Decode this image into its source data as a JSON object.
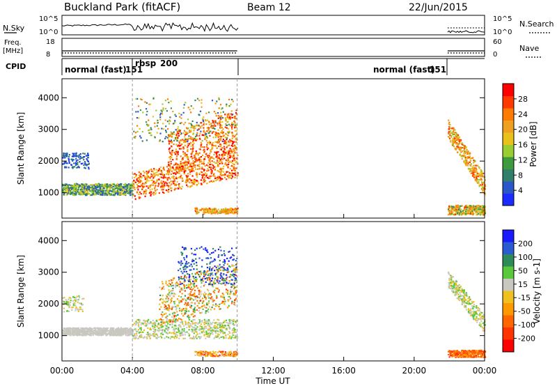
{
  "header": {
    "station": "Buckland Park (fitACF)",
    "beam": "Beam 12",
    "date": "22/Jun/2015"
  },
  "status_panels": {
    "nsky_label": "N.Sky",
    "nsky_ticks": [
      "10^5",
      "10^0"
    ],
    "nsearch_label": "N.Search",
    "nsearch_ticks": [
      "10^5",
      "10^0"
    ],
    "freq_label": "Freq.",
    "freq_unit": "[MHz]",
    "freq_ticks": [
      "18",
      "8"
    ],
    "nave_label": "Nave",
    "nave_ticks": [
      "60",
      "0"
    ],
    "cpid_label": "CPID",
    "modes": [
      {
        "name": "normal (fast)",
        "id": "151"
      },
      {
        "name": "rbsp",
        "id": "200"
      },
      {
        "name": "normal (fast)",
        "id": "151"
      }
    ]
  },
  "colors": {
    "power_scale": [
      "#1a2cff",
      "#2a56c8",
      "#2f7f6a",
      "#3d9a3d",
      "#9acd32",
      "#e8c21a",
      "#f0a020",
      "#ff7a00",
      "#ff3a00",
      "#ff0000"
    ],
    "velocity_scale": [
      "#1a1aff",
      "#2a5bd0",
      "#2f8a5a",
      "#5ac83c",
      "#c8c8c0",
      "#f0c020",
      "#ff9900",
      "#ff6600",
      "#ff3300",
      "#ff0000"
    ]
  },
  "chart_data": [
    {
      "type": "heatmap",
      "panel": "power",
      "ylabel": "Slant Range [km]",
      "yticks": [
        "1000",
        "2000",
        "3000",
        "4000"
      ],
      "ylim": [
        200,
        4600
      ],
      "colorbar_label": "Power [dB]",
      "colorbar_ticks": [
        "4",
        "8",
        "12",
        "16",
        "20",
        "24",
        "28"
      ],
      "colorbar_range": [
        0,
        32
      ]
    },
    {
      "type": "heatmap",
      "panel": "velocity",
      "ylabel": "Slant Range [km]",
      "yticks": [
        "1000",
        "2000",
        "3000",
        "4000"
      ],
      "ylim": [
        200,
        4600
      ],
      "colorbar_label": "Velocity [m s-1]",
      "colorbar_ticks": [
        "200",
        "100",
        "50",
        "15",
        "-15",
        "-50",
        "-100",
        "-200"
      ]
    }
  ],
  "time_axis": {
    "xlabel": "Time UT",
    "ticks": [
      "00:00",
      "04:00",
      "08:00",
      "12:00",
      "16:00",
      "20:00",
      "00:00"
    ],
    "xlim_hours": [
      0,
      24
    ]
  }
}
